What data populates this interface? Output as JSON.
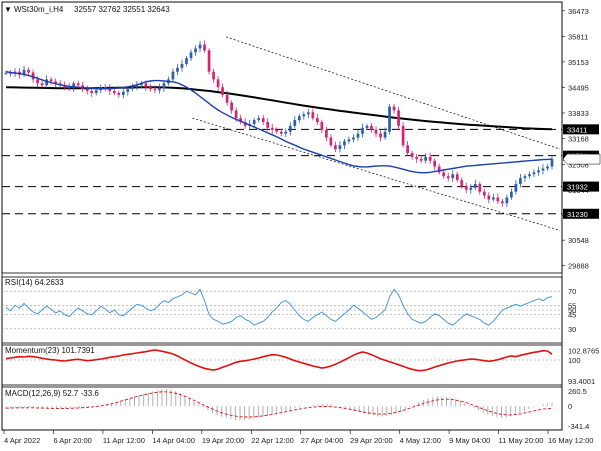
{
  "header": {
    "arrow": "▼",
    "symbol": "WSt30m_i,H4",
    "ohlc": "32557 32762 32551 32643"
  },
  "chart_data": [
    {
      "type": "line",
      "pane": "price",
      "y_ticks": [
        36473,
        35811,
        35153,
        34495,
        33833,
        33168,
        32508,
        31844,
        31190,
        30548,
        29888
      ],
      "ylim": [
        29700,
        36700
      ],
      "x_ticks": [
        "4 Apr 2022",
        "6 Apr 20:00",
        "11 Apr 12:00",
        "14 Apr 04:00",
        "19 Apr 20:00",
        "22 Apr 12:00",
        "27 Apr 04:00",
        "29 Apr 20:00",
        "4 May 12:00",
        "9 May 04:00",
        "11 May 20:00",
        "16 May 12:00"
      ],
      "levels": [
        {
          "label": "33411",
          "value": 33411
        },
        {
          "label": "32731",
          "value": 32731
        },
        {
          "label": "31932",
          "value": 31932
        },
        {
          "label": "31230",
          "value": 31230
        }
      ],
      "current_price": {
        "label": "32643",
        "value": 32643
      },
      "close_series": [
        34870,
        34850,
        34900,
        34820,
        34950,
        34880,
        34700,
        34600,
        34550,
        34700,
        34650,
        34600,
        34550,
        34500,
        34480,
        34600,
        34550,
        34450,
        34400,
        34350,
        34420,
        34500,
        34480,
        34400,
        34350,
        34300,
        34380,
        34450,
        34500,
        34550,
        34600,
        34500,
        34450,
        34420,
        34480,
        34600,
        34700,
        34900,
        35000,
        35100,
        35250,
        35400,
        35500,
        35600,
        35450,
        34900,
        34700,
        34500,
        34300,
        34100,
        33900,
        33700,
        33600,
        33500,
        33550,
        33650,
        33700,
        33600,
        33450,
        33400,
        33350,
        33300,
        33350,
        33500,
        33650,
        33750,
        33800,
        33850,
        33700,
        33600,
        33400,
        33200,
        33000,
        32900,
        33000,
        33100,
        33150,
        33200,
        33300,
        33450,
        33500,
        33400,
        33300,
        33200,
        33350,
        34000,
        33900,
        33500,
        33000,
        32800,
        32700,
        32650,
        32600,
        32700,
        32600,
        32450,
        32300,
        32200,
        32150,
        32250,
        32100,
        31950,
        31850,
        31900,
        32000,
        31800,
        31700,
        31600,
        31650,
        31550,
        31500,
        31650,
        31800,
        32000,
        32150,
        32200,
        32250,
        32300,
        32350,
        32400,
        32450,
        32643
      ],
      "ma_fast": [
        34900,
        34880,
        34860,
        34850,
        34830,
        34800,
        34770,
        34730,
        34690,
        34650,
        34620,
        34590,
        34560,
        34540,
        34520,
        34510,
        34500,
        34490,
        34480,
        34470,
        34460,
        34460,
        34460,
        34460,
        34470,
        34480,
        34490,
        34510,
        34530,
        34560,
        34600,
        34640,
        34660,
        34670,
        34670,
        34660,
        34650,
        34640,
        34610,
        34560,
        34500,
        34430,
        34350,
        34260,
        34170,
        34080,
        33990,
        33910,
        33840,
        33780,
        33720,
        33670,
        33620,
        33570,
        33520,
        33470,
        33420,
        33370,
        33320,
        33270,
        33220,
        33160,
        33100,
        33050,
        33000,
        32950,
        32900,
        32860,
        32820,
        32780,
        32740,
        32700,
        32660,
        32620,
        32580,
        32540,
        32500,
        32470,
        32450,
        32440,
        32440,
        32450,
        32460,
        32470,
        32470,
        32460,
        32440,
        32410,
        32380,
        32350,
        32320,
        32300,
        32290,
        32290,
        32300,
        32320,
        32340,
        32360,
        32380,
        32400,
        32420,
        32440,
        32460,
        32470,
        32480,
        32490,
        32500,
        32510,
        32520,
        32530,
        32540,
        32550,
        32560,
        32570,
        32580,
        32590,
        32600,
        32610,
        32620,
        32630,
        32635,
        32640
      ],
      "ma_slow": [
        34500,
        34495,
        34490,
        34485,
        34480,
        34475,
        34472,
        34470,
        34470,
        34472,
        34475,
        34480,
        34485,
        34490,
        34495,
        34500,
        34500,
        34495,
        34485,
        34470,
        34450,
        34425,
        34400,
        34370,
        34340,
        34305,
        34270,
        34230,
        34190,
        34150,
        34110,
        34070,
        34030,
        33995,
        33960,
        33925,
        33890,
        33860,
        33830,
        33800,
        33770,
        33740,
        33710,
        33685,
        33660,
        33635,
        33610,
        33590,
        33570,
        33550,
        33530,
        33515,
        33500,
        33485,
        33470,
        33455,
        33440,
        33430,
        33420,
        33411
      ],
      "channel": {
        "upper_start": 35800,
        "upper_end": 32900,
        "lower_start": 33700,
        "lower_end": 30800
      }
    },
    {
      "type": "line",
      "pane": "rsi",
      "title": "RSI(14) 64.2633",
      "y_ticks": [
        "70",
        "55",
        "50",
        "45",
        "30"
      ],
      "ylim": [
        15,
        85
      ],
      "values": [
        53,
        49,
        55,
        52,
        57,
        52,
        48,
        46,
        50,
        54,
        51,
        47,
        49,
        45,
        43,
        48,
        52,
        49,
        46,
        45,
        49,
        54,
        51,
        47,
        50,
        45,
        44,
        48,
        52,
        56,
        55,
        52,
        49,
        51,
        56,
        60,
        58,
        62,
        64,
        66,
        70,
        68,
        66,
        72,
        60,
        45,
        40,
        38,
        35,
        36,
        38,
        42,
        44,
        40,
        38,
        34,
        36,
        38,
        42,
        48,
        52,
        58,
        60,
        56,
        50,
        44,
        40,
        38,
        42,
        45,
        48,
        44,
        40,
        38,
        42,
        46,
        50,
        55,
        52,
        48,
        44,
        40,
        42,
        46,
        50,
        64,
        72,
        66,
        55,
        46,
        40,
        38,
        36,
        38,
        42,
        46,
        44,
        40,
        36,
        34,
        38,
        42,
        46,
        44,
        42,
        40,
        36,
        34,
        38,
        44,
        50,
        52,
        54,
        56,
        54,
        56,
        58,
        60,
        62,
        60,
        63,
        64.26
      ]
    },
    {
      "type": "line",
      "pane": "momentum",
      "title": "Momentum(23) 101.7391",
      "y_ticks": [
        "102.8765",
        "100",
        "93.4001"
      ],
      "ylim": [
        92.5,
        104.5
      ],
      "values": [
        100.4,
        100.6,
        100.8,
        101.0,
        100.9,
        101.1,
        101.0,
        100.8,
        100.5,
        100.3,
        100.1,
        100.0,
        99.8,
        99.7,
        99.9,
        100.1,
        100.2,
        100.0,
        99.8,
        99.9,
        100.1,
        100.3,
        100.5,
        100.8,
        101.0,
        101.2,
        101.5,
        101.7,
        101.9,
        102.1,
        102.3,
        102.5,
        102.8,
        103.0,
        102.8,
        102.5,
        102.2,
        101.8,
        101.2,
        100.5,
        99.8,
        99.1,
        98.5,
        98.0,
        97.5,
        97.2,
        97.0,
        97.3,
        97.8,
        98.3,
        98.8,
        99.3,
        99.6,
        99.8,
        100.0,
        100.3,
        100.6,
        101.0,
        101.3,
        101.6,
        101.5,
        101.2,
        100.8,
        100.3,
        99.8,
        99.4,
        99.0,
        98.6,
        98.2,
        97.9,
        97.6,
        97.8,
        98.2,
        98.7,
        99.3,
        100.0,
        100.7,
        101.4,
        102.0,
        102.4,
        102.1,
        101.6,
        101.0,
        100.4,
        99.9,
        99.5,
        99.0,
        98.6,
        98.1,
        97.6,
        97.2,
        96.9,
        96.8,
        97.0,
        97.4,
        97.9,
        98.3,
        98.7,
        99.1,
        99.4,
        99.7,
        99.9,
        100.1,
        100.3,
        100.2,
        100.0,
        99.8,
        99.6,
        99.8,
        100.1,
        100.5,
        100.9,
        101.2,
        101.0,
        101.4,
        101.7,
        102.0,
        102.3,
        102.5,
        102.8,
        102.7,
        101.74
      ]
    },
    {
      "type": "bar",
      "pane": "macd",
      "title": "MACD(12,26,9) 52.7 -33.6",
      "y_ticks": [
        "260.5",
        "0",
        "-341.4"
      ],
      "ylim": [
        -360,
        290
      ],
      "histogram": [
        -40,
        -35,
        -30,
        -26,
        -22,
        -20,
        -22,
        -25,
        -28,
        -32,
        -35,
        -38,
        -40,
        -38,
        -34,
        -30,
        -26,
        -20,
        -14,
        -6,
        4,
        16,
        30,
        46,
        64,
        84,
        104,
        124,
        144,
        164,
        184,
        204,
        222,
        238,
        250,
        258,
        250,
        230,
        200,
        162,
        118,
        72,
        26,
        -18,
        -60,
        -98,
        -132,
        -160,
        -182,
        -198,
        -208,
        -212,
        -210,
        -202,
        -190,
        -176,
        -160,
        -142,
        -124,
        -106,
        -88,
        -70,
        -52,
        -34,
        -18,
        -4,
        8,
        18,
        26,
        30,
        28,
        20,
        8,
        -8,
        -26,
        -46,
        -68,
        -90,
        -110,
        -128,
        -142,
        -152,
        -156,
        -150,
        -136,
        -114,
        -86,
        -52,
        -14,
        24,
        60,
        92,
        118,
        136,
        146,
        148,
        142,
        128,
        106,
        78,
        46,
        10,
        -26,
        -62,
        -96,
        -126,
        -150,
        -168,
        -176,
        -172,
        -156,
        -132,
        -104,
        -74,
        -44,
        -16,
        8,
        28,
        44,
        52.7
      ],
      "signal": [
        -30,
        -28,
        -26,
        -25,
        -24,
        -24,
        -25,
        -27,
        -29,
        -31,
        -33,
        -34,
        -35,
        -34,
        -32,
        -30,
        -27,
        -23,
        -18,
        -12,
        -4,
        6,
        18,
        32,
        48,
        66,
        86,
        106,
        126,
        146,
        164,
        180,
        194,
        206,
        214,
        218,
        214,
        204,
        188,
        166,
        140,
        110,
        78,
        44,
        10,
        -22,
        -52,
        -80,
        -104,
        -124,
        -140,
        -152,
        -160,
        -164,
        -164,
        -160,
        -154,
        -146,
        -136,
        -124,
        -112,
        -98,
        -84,
        -70,
        -56,
        -44,
        -32,
        -22,
        -14,
        -8,
        -5,
        -5,
        -8,
        -14,
        -22,
        -32,
        -44,
        -58,
        -72,
        -86,
        -98,
        -108,
        -116,
        -120,
        -118,
        -112,
        -100,
        -84,
        -64,
        -42,
        -18,
        6,
        30,
        52,
        72,
        88,
        100,
        106,
        106,
        100,
        88,
        72,
        52,
        28,
        2,
        -24,
        -50,
        -74,
        -96,
        -114,
        -126,
        -132,
        -132,
        -126,
        -116,
        -102,
        -86,
        -70,
        -56,
        -44,
        -38,
        -33.6
      ]
    }
  ]
}
